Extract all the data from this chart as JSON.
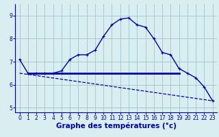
{
  "hours": [
    0,
    1,
    2,
    3,
    4,
    5,
    6,
    7,
    8,
    9,
    10,
    11,
    12,
    13,
    14,
    15,
    16,
    17,
    18,
    19,
    20,
    21,
    22,
    23
  ],
  "temp_curve": [
    7.1,
    6.5,
    6.5,
    6.5,
    6.5,
    6.6,
    7.1,
    7.3,
    7.3,
    7.5,
    8.1,
    8.6,
    8.85,
    8.9,
    8.6,
    8.5,
    8.0,
    7.4,
    7.3,
    6.7,
    6.5,
    6.3,
    5.9,
    5.3
  ],
  "flat_line_y": 6.5,
  "flat_line_x_start": 1,
  "flat_line_x_end": 19,
  "dashed_line": [
    [
      0,
      6.5
    ],
    [
      23,
      5.3
    ]
  ],
  "bg_color": "#d8eef0",
  "grid_color": "#a8c8d0",
  "line_color": "#0000aa",
  "axis_color": "#0000aa",
  "xlabel": "Graphe des températures (°c)",
  "ylim": [
    4.8,
    9.5
  ],
  "xlim": [
    -0.5,
    23.5
  ],
  "yticks": [
    5,
    6,
    7,
    8,
    9
  ],
  "xticks": [
    0,
    1,
    2,
    3,
    4,
    5,
    6,
    7,
    8,
    9,
    10,
    11,
    12,
    13,
    14,
    15,
    16,
    17,
    18,
    19,
    20,
    21,
    22,
    23
  ],
  "tick_fontsize": 5.5,
  "xlabel_fontsize": 7.5
}
